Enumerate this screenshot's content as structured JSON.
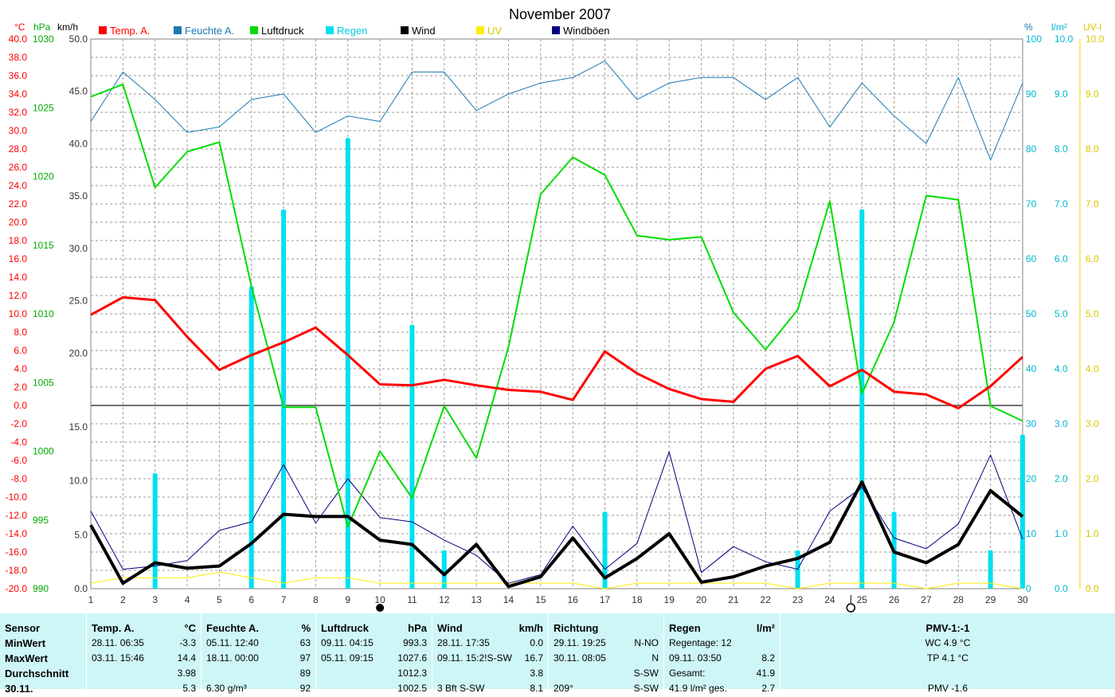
{
  "chart_data": {
    "type": "line",
    "title": "November 2007",
    "x": [
      1,
      2,
      3,
      4,
      5,
      6,
      7,
      8,
      9,
      10,
      11,
      12,
      13,
      14,
      15,
      16,
      17,
      18,
      19,
      20,
      21,
      22,
      23,
      24,
      25,
      26,
      27,
      28,
      29,
      30
    ],
    "axes": {
      "temp": {
        "unit": "°C",
        "range": [
          -20,
          40
        ],
        "step": 2,
        "color": "#ff0000"
      },
      "pressure": {
        "unit": "hPa",
        "range": [
          990,
          1030
        ],
        "ticks": [
          990,
          995,
          1000,
          1005,
          1010,
          1015,
          1020,
          1025,
          1030
        ],
        "color": "#00aa00"
      },
      "wind": {
        "unit": "km/h",
        "upper_range": [
          15,
          50
        ],
        "lower_range": [
          0,
          17
        ],
        "ticks": [
          0,
          5,
          10,
          15,
          20,
          25,
          30,
          35,
          40,
          45,
          50
        ],
        "color": "#000000"
      },
      "humidity": {
        "unit": "%",
        "range": [
          0,
          100
        ],
        "step": 10,
        "color": "#00a0c8"
      },
      "rain": {
        "unit": "l/m²",
        "range": [
          0,
          10
        ],
        "step": 1,
        "color": "#00d8e8"
      },
      "uv": {
        "unit": "UV-I",
        "range": [
          0,
          10
        ],
        "step": 1,
        "color": "#d8c800"
      }
    },
    "series": [
      {
        "name": "Temp. A.",
        "color": "#ff0000",
        "axis": "temp",
        "values": [
          9.9,
          11.8,
          11.5,
          7.5,
          3.9,
          5.5,
          6.9,
          8.5,
          5.5,
          2.3,
          2.2,
          2.8,
          2.2,
          1.7,
          1.5,
          0.6,
          5.9,
          3.5,
          1.8,
          0.7,
          0.4,
          4.0,
          5.4,
          2.1,
          3.9,
          1.5,
          1.2,
          -0.3,
          2.1,
          5.3
        ]
      },
      {
        "name": "Feuchte A.",
        "color": "#1a7ab0",
        "axis": "humidity",
        "values": [
          85,
          94,
          89,
          83,
          84,
          89,
          90,
          83,
          86,
          85,
          94,
          94,
          87,
          90,
          92,
          93,
          96,
          89,
          92,
          93,
          93,
          89,
          93,
          84,
          92,
          86,
          81,
          93,
          78,
          92
        ]
      },
      {
        "name": "Luftdruck",
        "color": "#00dd00",
        "axis": "pressure",
        "values": [
          1025.8,
          1026.7,
          1019.2,
          1021.8,
          1022.5,
          1012.0,
          1003.2,
          1003.2,
          994.5,
          1000.0,
          996.6,
          1003.3,
          999.5,
          1007.6,
          1018.7,
          1021.4,
          1020.1,
          1015.7,
          1015.4,
          1015.6,
          1010.1,
          1007.4,
          1010.3,
          1018.2,
          1004.2,
          1009.4,
          1018.6,
          1018.3,
          1003.3,
          1002.2
        ]
      },
      {
        "name": "Regen",
        "color": "#00e0f0",
        "axis": "rain",
        "values": [
          0,
          0,
          2.1,
          0,
          0,
          5.5,
          6.9,
          0,
          8.2,
          0,
          4.8,
          0.7,
          0,
          0,
          0,
          0,
          1.4,
          0,
          0,
          0,
          0,
          0,
          0.7,
          0,
          6.9,
          1.4,
          0,
          0,
          0.7,
          2.8
        ]
      },
      {
        "name": "Wind",
        "color": "#000000",
        "axis": "wind",
        "values": [
          5.9,
          0.5,
          2.4,
          1.9,
          2.1,
          4.2,
          6.9,
          6.7,
          6.7,
          4.5,
          4.1,
          1.3,
          4.1,
          0.2,
          1.1,
          4.7,
          1.0,
          2.8,
          5.1,
          0.6,
          1.1,
          2.1,
          2.8,
          4.3,
          9.9,
          3.4,
          2.4,
          4.1,
          9.1,
          6.7
        ]
      },
      {
        "name": "UV",
        "color": "#ffee00",
        "axis": "uv",
        "values": [
          0.1,
          0.2,
          0.2,
          0.2,
          0.3,
          0.2,
          0.1,
          0.2,
          0.2,
          0.1,
          0.1,
          0.1,
          0.1,
          0.1,
          0.1,
          0.1,
          0.0,
          0.1,
          0.1,
          0.1,
          0.1,
          0.1,
          0.0,
          0.1,
          0.1,
          0.1,
          0.0,
          0.1,
          0.1,
          0.0
        ]
      },
      {
        "name": "Windböen",
        "color": "#000080",
        "axis": "wind",
        "values": [
          7.2,
          1.8,
          2.1,
          2.6,
          5.4,
          6.2,
          11.5,
          6.1,
          10.2,
          6.6,
          6.2,
          4.5,
          3.1,
          0.5,
          1.3,
          5.8,
          1.8,
          4.2,
          12.7,
          1.5,
          3.9,
          2.5,
          1.8,
          7.2,
          9.4,
          4.7,
          3.7,
          6.0,
          12.4,
          4.6
        ]
      }
    ],
    "moon_phases": {
      "new_moon_day": 10,
      "full_moon_day": 25
    }
  },
  "header_units": {
    "temp": "°C",
    "pressure": "hPa",
    "wind": "km/h",
    "humidity": "%",
    "rain": "l/m²",
    "uv": "UV-I"
  },
  "stats": {
    "sensor": {
      "title": "Sensor",
      "rows": [
        "MinWert",
        "MaxWert",
        "Durchschnitt",
        "30.11."
      ]
    },
    "temp": {
      "title": "Temp. A.",
      "unit": "°C",
      "min": {
        "when": "28.11.  06:35",
        "val": "-3.3"
      },
      "max": {
        "when": "03.11.  15:46",
        "val": "14.4"
      },
      "avg": "3.98",
      "last": {
        "when": "",
        "val": "5.3"
      }
    },
    "humidity": {
      "title": "Feuchte A.",
      "unit": "%",
      "min": {
        "when": "05.11.  12:40",
        "val": "63"
      },
      "max": {
        "when": "18.11.  00:00",
        "val": "97"
      },
      "avg": "89",
      "last": {
        "when": "6.30 g/m³",
        "val": "92"
      }
    },
    "pressure": {
      "title": "Luftdruck",
      "unit": "hPa",
      "min": {
        "when": "09.11.  04:15",
        "val": "993.3"
      },
      "max": {
        "when": "05.11.  09:15",
        "val": "1027.6"
      },
      "avg": "1012.3",
      "last": {
        "when": "",
        "val": "1002.5"
      }
    },
    "wind": {
      "title": "Wind",
      "unit": "km/h",
      "min": {
        "when": "28.11.  17:35",
        "val": "0.0"
      },
      "max": {
        "when": "09.11.  15:2!S-SW",
        "val": "16.7"
      },
      "avg": "3.8",
      "last": {
        "when": "3 Bft S-SW",
        "val": "8.1"
      }
    },
    "direction": {
      "title": "Richtung",
      "min": {
        "when": "29.11.  19:25",
        "val": "N-NO"
      },
      "max": {
        "when": "30.11.  08:05",
        "val": "N"
      },
      "avg": "S-SW",
      "last": {
        "when": "209°",
        "val": "S-SW"
      }
    },
    "rain": {
      "title": "Regen",
      "unit": "l/m²",
      "r1": {
        "label": "Regentage: 12",
        "val": ""
      },
      "r2": {
        "label": "09.11.  03:50",
        "val": "8.2"
      },
      "r3": {
        "label": "Gesamt:",
        "val": "41.9"
      },
      "r4": {
        "label": "41.9 l/m² ges.",
        "val": "2.7"
      }
    },
    "pmv": {
      "title": "PMV-1:-1",
      "wc": "WC 4.9 °C",
      "tp": "TP 4.1 °C",
      "extra": "PMV -1.6"
    }
  }
}
